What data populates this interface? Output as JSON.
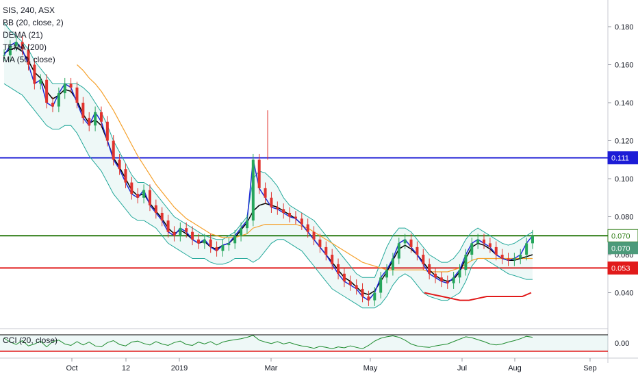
{
  "chart_data": {
    "type": "candlestick",
    "symbol_header": "SIS, 240, ASX",
    "indicators": [
      {
        "name": "BB (20, close, 2)",
        "color": "#22a89a"
      },
      {
        "name": "DEMA (21)",
        "color": "#1e2bd6"
      },
      {
        "name": "TEMA (200)",
        "color": "#000000"
      },
      {
        "name": "MA (50, close)",
        "color": "#f5a02a"
      }
    ],
    "oscillator": {
      "name": "CCI (20, close)",
      "zero_label": "0.00",
      "color": "#1c8a2c"
    },
    "y_axis": {
      "min": 0.02,
      "max": 0.19,
      "ticks": [
        "0.180",
        "0.160",
        "0.140",
        "0.120",
        "0.100",
        "0.080",
        "0.060",
        "0.040"
      ]
    },
    "x_axis": {
      "ticks": [
        "Oct",
        "12",
        "2019",
        "Mar",
        "May",
        "Jul",
        "Aug",
        "Sep"
      ]
    },
    "horizontal_lines": [
      {
        "value": 0.111,
        "label": "0.111",
        "color": "#1c1cd6"
      },
      {
        "value": 0.07,
        "label": "0.070",
        "color": "#2a7a10"
      },
      {
        "value": 0.053,
        "label": "0.053",
        "color": "#e11a1a"
      }
    ],
    "last_price": {
      "value": 0.07,
      "label": "0.070",
      "color": "#4c9a7a"
    },
    "close_series": [
      0.165,
      0.17,
      0.172,
      0.168,
      0.16,
      0.15,
      0.152,
      0.14,
      0.138,
      0.145,
      0.15,
      0.148,
      0.14,
      0.132,
      0.128,
      0.135,
      0.13,
      0.12,
      0.11,
      0.105,
      0.098,
      0.092,
      0.09,
      0.094,
      0.086,
      0.082,
      0.078,
      0.072,
      0.07,
      0.074,
      0.072,
      0.068,
      0.066,
      0.068,
      0.064,
      0.062,
      0.065,
      0.066,
      0.07,
      0.074,
      0.078,
      0.11,
      0.095,
      0.09,
      0.085,
      0.084,
      0.082,
      0.08,
      0.079,
      0.076,
      0.072,
      0.068,
      0.064,
      0.06,
      0.055,
      0.05,
      0.046,
      0.044,
      0.042,
      0.038,
      0.036,
      0.04,
      0.048,
      0.052,
      0.058,
      0.066,
      0.068,
      0.064,
      0.06,
      0.055,
      0.05,
      0.048,
      0.046,
      0.045,
      0.048,
      0.052,
      0.06,
      0.066,
      0.068,
      0.066,
      0.064,
      0.06,
      0.058,
      0.057,
      0.058,
      0.06,
      0.066,
      0.07
    ],
    "bb_upper": [
      0.182,
      0.178,
      0.175,
      0.172,
      0.168,
      0.162,
      0.158,
      0.154,
      0.15,
      0.15,
      0.15,
      0.15,
      0.15,
      0.148,
      0.145,
      0.14,
      0.135,
      0.128,
      0.12,
      0.114,
      0.108,
      0.102,
      0.098,
      0.098,
      0.096,
      0.092,
      0.088,
      0.084,
      0.08,
      0.078,
      0.076,
      0.074,
      0.072,
      0.07,
      0.069,
      0.068,
      0.068,
      0.07,
      0.072,
      0.076,
      0.08,
      0.1,
      0.104,
      0.103,
      0.1,
      0.096,
      0.09,
      0.086,
      0.084,
      0.082,
      0.08,
      0.078,
      0.074,
      0.07,
      0.066,
      0.062,
      0.058,
      0.054,
      0.05,
      0.048,
      0.048,
      0.048,
      0.056,
      0.064,
      0.07,
      0.074,
      0.074,
      0.072,
      0.068,
      0.064,
      0.06,
      0.058,
      0.056,
      0.056,
      0.058,
      0.062,
      0.068,
      0.072,
      0.074,
      0.072,
      0.07,
      0.068,
      0.066,
      0.065,
      0.066,
      0.068,
      0.07,
      0.072
    ],
    "bb_lower": [
      0.15,
      0.148,
      0.146,
      0.144,
      0.14,
      0.136,
      0.132,
      0.128,
      0.126,
      0.126,
      0.128,
      0.128,
      0.124,
      0.118,
      0.112,
      0.108,
      0.104,
      0.098,
      0.092,
      0.088,
      0.084,
      0.08,
      0.078,
      0.078,
      0.076,
      0.074,
      0.07,
      0.066,
      0.064,
      0.062,
      0.06,
      0.058,
      0.058,
      0.058,
      0.056,
      0.055,
      0.055,
      0.056,
      0.058,
      0.058,
      0.058,
      0.056,
      0.058,
      0.062,
      0.066,
      0.068,
      0.068,
      0.066,
      0.064,
      0.062,
      0.058,
      0.054,
      0.05,
      0.046,
      0.042,
      0.04,
      0.038,
      0.036,
      0.034,
      0.032,
      0.032,
      0.032,
      0.034,
      0.038,
      0.044,
      0.048,
      0.05,
      0.048,
      0.044,
      0.04,
      0.038,
      0.037,
      0.036,
      0.036,
      0.038,
      0.04,
      0.046,
      0.054,
      0.058,
      0.058,
      0.056,
      0.054,
      0.052,
      0.05,
      0.049,
      0.048,
      0.047,
      0.047
    ],
    "tema_series": [
      0.166,
      0.168,
      0.169,
      0.167,
      0.162,
      0.156,
      0.153,
      0.146,
      0.142,
      0.144,
      0.147,
      0.146,
      0.141,
      0.134,
      0.129,
      0.131,
      0.128,
      0.12,
      0.111,
      0.106,
      0.1,
      0.094,
      0.091,
      0.092,
      0.087,
      0.083,
      0.079,
      0.074,
      0.071,
      0.073,
      0.071,
      0.068,
      0.066,
      0.067,
      0.064,
      0.063,
      0.065,
      0.066,
      0.069,
      0.073,
      0.077,
      0.083,
      0.086,
      0.087,
      0.086,
      0.085,
      0.083,
      0.081,
      0.079,
      0.076,
      0.072,
      0.068,
      0.064,
      0.06,
      0.056,
      0.052,
      0.048,
      0.046,
      0.043,
      0.04,
      0.039,
      0.041,
      0.046,
      0.051,
      0.057,
      0.063,
      0.065,
      0.063,
      0.06,
      0.056,
      0.052,
      0.049,
      0.047,
      0.046,
      0.047,
      0.051,
      0.058,
      0.064,
      0.066,
      0.065,
      0.063,
      0.06,
      0.058,
      0.057,
      0.057,
      0.058,
      0.059,
      0.06
    ],
    "ma_series": [
      null,
      null,
      null,
      null,
      null,
      null,
      null,
      null,
      null,
      null,
      null,
      null,
      0.16,
      0.157,
      0.153,
      0.15,
      0.146,
      0.141,
      0.136,
      0.13,
      0.124,
      0.118,
      0.112,
      0.107,
      0.102,
      0.097,
      0.093,
      0.089,
      0.085,
      0.082,
      0.079,
      0.077,
      0.075,
      0.073,
      0.071,
      0.07,
      0.069,
      0.069,
      0.069,
      0.07,
      0.071,
      0.074,
      0.075,
      0.076,
      0.076,
      0.076,
      0.076,
      0.076,
      0.076,
      0.075,
      0.074,
      0.072,
      0.07,
      0.068,
      0.066,
      0.064,
      0.062,
      0.06,
      0.058,
      0.056,
      0.055,
      0.054,
      0.053,
      0.052,
      0.052,
      0.052,
      0.052,
      0.052,
      0.052,
      0.052,
      0.051,
      0.051,
      0.051,
      0.051,
      0.052,
      0.053,
      0.055,
      0.057,
      0.058,
      0.058,
      0.058,
      0.058,
      0.058,
      0.058,
      0.058,
      0.058,
      0.058,
      0.058
    ],
    "red_support_series": [
      0.04,
      0.039,
      0.038,
      0.037,
      0.036,
      0.036,
      0.037,
      0.038,
      0.038,
      0.038,
      0.038,
      0.038,
      0.04
    ],
    "cci_series": [
      1,
      0.2,
      -0.3,
      0.5,
      -0.6,
      -0.2,
      0.4,
      -0.8,
      0.3,
      0.6,
      -0.2,
      -0.5,
      0.3,
      -0.4,
      0.2,
      -0.6,
      -0.8,
      0.1,
      0.5,
      -0.3,
      -0.6,
      0.2,
      0.4,
      -0.1,
      -0.4,
      0.3,
      -0.2,
      -0.5,
      0.1,
      0.4,
      -0.3,
      -0.5,
      0.2,
      -0.2,
      0.3,
      -0.4,
      0.2,
      0.5,
      0.7,
      0.9,
      1.2,
      1.6,
      0.6,
      0.2,
      -0.1,
      0.3,
      -0.2,
      0.1,
      -0.3,
      -0.6,
      -0.8,
      -1.1,
      -0.7,
      -0.9,
      -1.2,
      -0.8,
      -1.0,
      -0.6,
      -0.9,
      -1.2,
      -0.5,
      0.4,
      1.0,
      1.3,
      1.5,
      1.2,
      0.6,
      -0.2,
      -0.6,
      -0.8,
      -0.9,
      -0.6,
      -0.4,
      -0.2,
      0.3,
      0.8,
      1.3,
      1.1,
      0.7,
      0.3,
      -0.2,
      -0.4,
      -0.2,
      0.2,
      0.5,
      0.9,
      1.4,
      1.2
    ]
  }
}
